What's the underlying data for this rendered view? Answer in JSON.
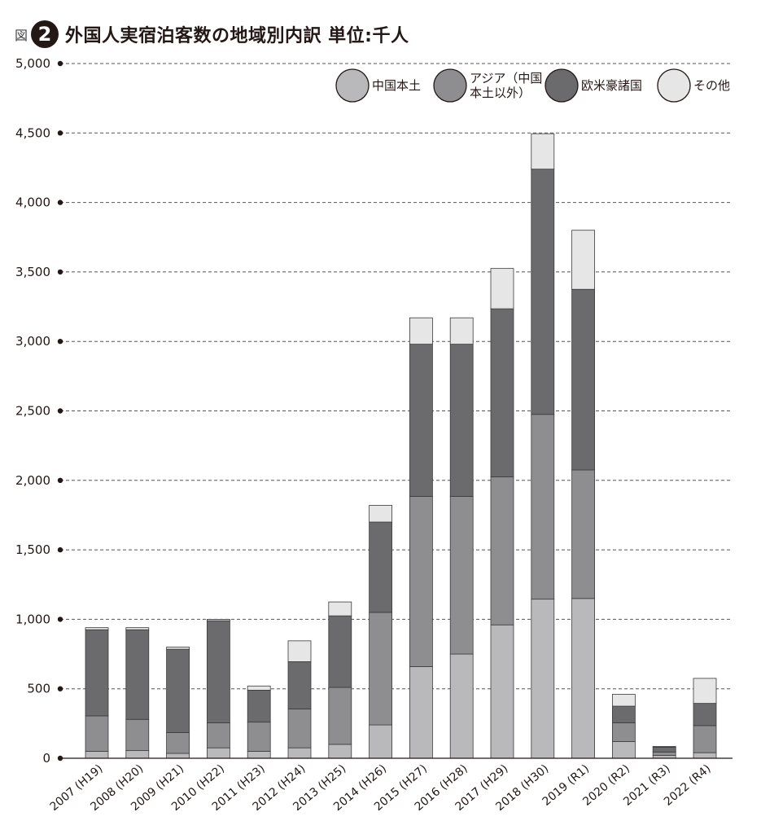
{
  "header": {
    "fig_label": "図",
    "fig_number": "2",
    "title": "外国人実宿泊客数の地域別内訳 単位:千人"
  },
  "chart_data": {
    "type": "bar",
    "stacked": true,
    "title": "外国人実宿泊客数の地域別内訳 単位:千人",
    "xlabel": "",
    "ylabel": "",
    "ylim": [
      0,
      5000
    ],
    "yticks": [
      0,
      500,
      1000,
      1500,
      2000,
      2500,
      3000,
      3500,
      4000,
      4500,
      5000
    ],
    "ytick_labels": [
      "0",
      "500",
      "1,000",
      "1,500",
      "2,000",
      "2,500",
      "3,000",
      "3,500",
      "4,000",
      "4,500",
      "5,000"
    ],
    "grid": "horizontal-dashed",
    "legend_position": "top-right",
    "categories": [
      "2007 (H19)",
      "2008 (H20)",
      "2009 (H21)",
      "2010 (H22)",
      "2011 (H23)",
      "2012 (H24)",
      "2013 (H25)",
      "2014 (H26)",
      "2015 (H27)",
      "2016 (H28)",
      "2017 (H29)",
      "2018 (H30)",
      "2019 (R1)",
      "2020 (R2)",
      "2021 (R3)",
      "2022 (R4)"
    ],
    "series": [
      {
        "name": "中国本土",
        "color": "#b9b9bb",
        "values": [
          50,
          55,
          35,
          75,
          50,
          75,
          100,
          240,
          660,
          750,
          960,
          1145,
          1150,
          120,
          20,
          40
        ]
      },
      {
        "name": "アジア（中国本土以外）",
        "color": "#8e8e90",
        "values": [
          255,
          225,
          150,
          180,
          210,
          280,
          410,
          810,
          1225,
          1135,
          1065,
          1330,
          925,
          135,
          25,
          195
        ]
      },
      {
        "name": "欧米豪諸国",
        "color": "#6b6b6d",
        "values": [
          620,
          645,
          600,
          735,
          230,
          340,
          515,
          650,
          1095,
          1095,
          1210,
          1765,
          1300,
          120,
          35,
          160
        ]
      },
      {
        "name": "その他",
        "color": "#e6e6e6",
        "values": [
          15,
          15,
          15,
          10,
          30,
          150,
          100,
          120,
          190,
          190,
          290,
          255,
          425,
          85,
          5,
          180
        ]
      }
    ]
  },
  "legend": {
    "items": [
      {
        "line1": "中国本土",
        "line2": "",
        "color": "#b9b9bb"
      },
      {
        "line1": "アジア（中国",
        "line2": "本土以外）",
        "color": "#8e8e90"
      },
      {
        "line1": "欧米豪諸国",
        "line2": "",
        "color": "#6b6b6d"
      },
      {
        "line1": "その他",
        "line2": "",
        "color": "#e6e6e6"
      }
    ]
  }
}
